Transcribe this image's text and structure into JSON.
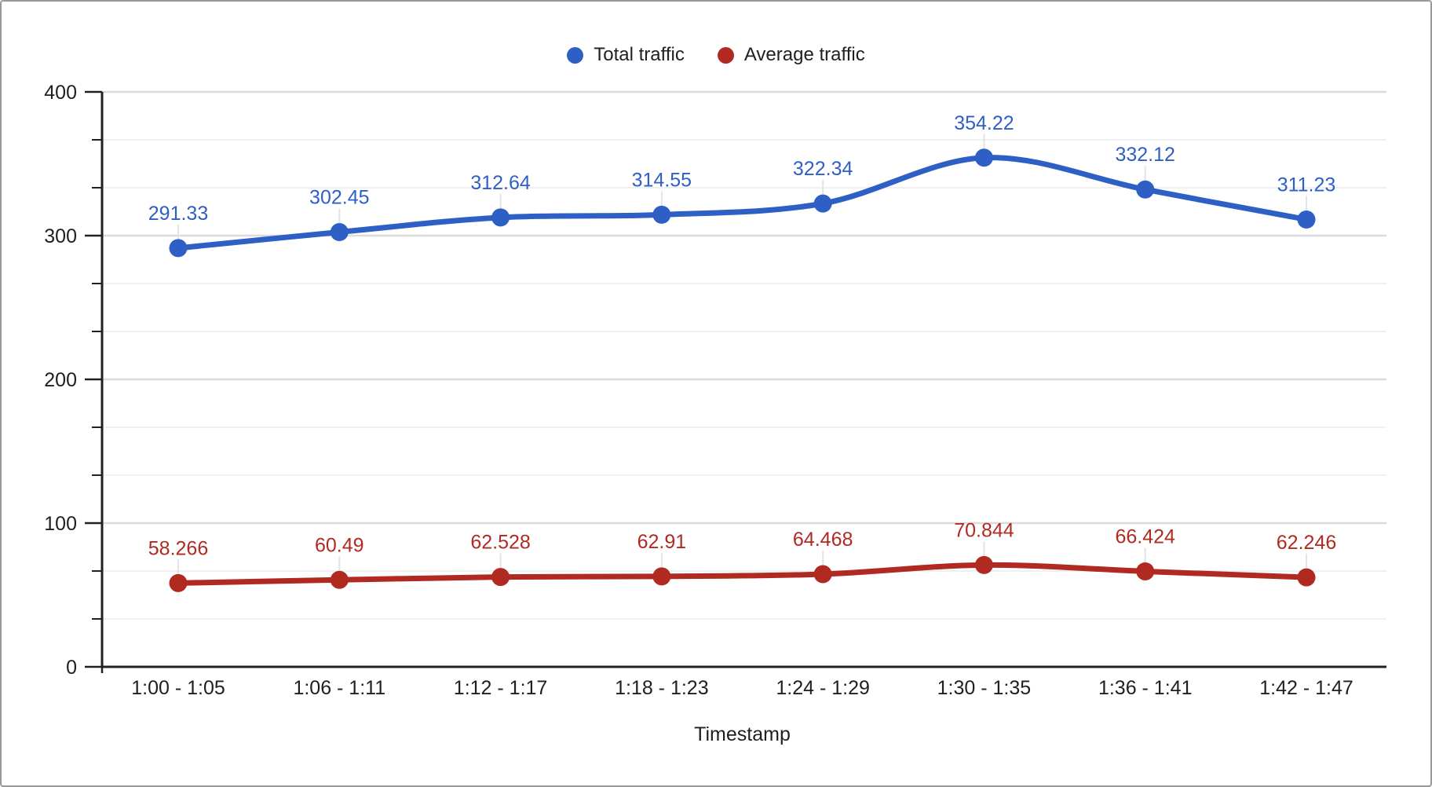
{
  "chart_data": {
    "type": "line",
    "title": "",
    "xlabel": "Timestamp",
    "ylabel": "",
    "smooth": true,
    "grid": true,
    "legend_position": "top",
    "categories": [
      "1:00 - 1:05",
      "1:06 - 1:11",
      "1:12 - 1:17",
      "1:18 - 1:23",
      "1:24 - 1:29",
      "1:30 - 1:35",
      "1:36 - 1:41",
      "1:42 - 1:47"
    ],
    "series": [
      {
        "name": "Total traffic",
        "color": "#2E5FC5",
        "values": [
          291.33,
          302.45,
          312.64,
          314.55,
          322.34,
          354.22,
          332.12,
          311.23
        ],
        "point_labels": [
          "291.33",
          "302.45",
          "312.64",
          "314.55",
          "322.34",
          "354.22",
          "332.12",
          "311.23"
        ]
      },
      {
        "name": "Average traffic",
        "color": "#B02A22",
        "values": [
          58.266,
          60.49,
          62.528,
          62.91,
          64.468,
          70.844,
          66.424,
          62.246
        ],
        "point_labels": [
          "58.266",
          "60.49",
          "62.528",
          "62.91",
          "64.468",
          "70.844",
          "66.424",
          "62.246"
        ]
      }
    ],
    "y_axis": {
      "min": 0,
      "max": 400,
      "major_step": 100,
      "minor_divisions": 3,
      "major_tick_labels": [
        "0",
        "100",
        "200",
        "300",
        "400"
      ]
    }
  },
  "styles": {
    "background": "#FFFFFF",
    "border_color": "#999999",
    "axis_color": "#212121",
    "text_color": "#1F1F1F",
    "grid_major_color": "#DBDBDB",
    "grid_minor_color": "#F0F0F0",
    "label_stub_color": "#E3E3E3"
  }
}
